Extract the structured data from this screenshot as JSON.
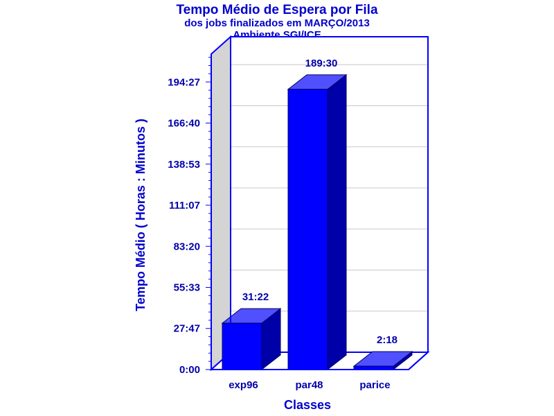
{
  "chart_data": {
    "type": "bar",
    "title": "Tempo Médio de Espera por Fila",
    "subtitle": [
      "dos jobs finalizados em MARÇO/2013",
      "Ambiente SGI/ICE"
    ],
    "xlabel": "Classes",
    "ylabel": "Tempo Médio ( Horas : Minutos )",
    "categories": [
      "exp96",
      "par48",
      "parice"
    ],
    "values": [
      1882,
      11370,
      138
    ],
    "value_labels": [
      "31:22",
      "189:30",
      "2:18"
    ],
    "y_ticks": [
      0,
      1667,
      3333,
      5000,
      6667,
      8333,
      10000,
      11667
    ],
    "y_tick_labels": [
      "0:00",
      "27:47",
      "55:33",
      "83:20",
      "111:07",
      "138:53",
      "166:40",
      "194:27"
    ],
    "ylim": [
      0,
      12800
    ],
    "value_unit": "minutes",
    "grid": true,
    "three_d": true
  },
  "colors": {
    "bar_front": "#0000ff",
    "bar_top": "#5050ff",
    "bar_side": "#0000a8",
    "frame": "#0000ff",
    "back_wall": "#ffffff",
    "side_wall": "#d4d4d4",
    "grid": "#c8c8c8",
    "text": "#0000aa"
  }
}
